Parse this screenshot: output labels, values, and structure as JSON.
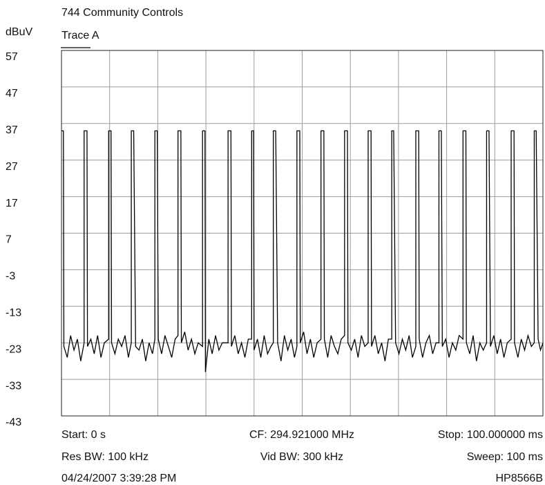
{
  "chart_data": {
    "type": "line",
    "title": "744 Community Controls",
    "ylabel": "dBuV",
    "ylim": [
      -43,
      57
    ],
    "yticks": [
      57,
      47,
      37,
      27,
      17,
      7,
      -3,
      -13,
      -23,
      -33,
      -43
    ],
    "xlim": [
      0,
      100
    ],
    "xticks": [
      0,
      10,
      20,
      30,
      40,
      50,
      60,
      70,
      80,
      90,
      100
    ],
    "grid": true,
    "x": [
      0,
      0.4,
      0.5,
      1.2,
      1.9,
      2.6,
      3.3,
      4.0,
      4.7,
      4.7,
      5.3,
      5.4,
      6.1,
      6.8,
      7.5,
      8.2,
      8.9,
      9.8,
      9.8,
      10.3,
      10.4,
      11.1,
      11.8,
      12.5,
      13.2,
      13.9,
      14.5,
      14.5,
      15.0,
      15.4,
      16.1,
      16.8,
      17.5,
      18.2,
      18.9,
      19.4,
      19.4,
      19.9,
      20.1,
      20.8,
      21.5,
      22.2,
      22.9,
      23.6,
      24.2,
      24.2,
      24.8,
      24.9,
      25.6,
      26.3,
      27.0,
      27.7,
      28.4,
      29.3,
      29.3,
      29.8,
      29.9,
      30.6,
      31.3,
      32.0,
      32.7,
      33.4,
      34.6,
      34.6,
      35.2,
      35.3,
      36.0,
      36.7,
      37.4,
      38.1,
      38.8,
      39.5,
      39.5,
      39.9,
      40.0,
      40.7,
      41.4,
      42.1,
      42.8,
      43.5,
      44.0,
      44.0,
      44.5,
      44.9,
      45.6,
      46.3,
      47.0,
      47.7,
      48.4,
      48.9,
      48.9,
      49.5,
      49.6,
      50.3,
      51.0,
      51.7,
      52.4,
      53.1,
      53.9,
      53.9,
      54.5,
      54.6,
      55.3,
      56.0,
      56.7,
      57.4,
      58.1,
      58.8,
      58.8,
      59.4,
      59.5,
      60.2,
      60.9,
      61.6,
      62.3,
      63.0,
      63.7,
      63.7,
      64.3,
      64.4,
      65.1,
      65.8,
      66.5,
      67.2,
      67.9,
      68.6,
      68.6,
      69.0,
      69.4,
      70.1,
      70.8,
      71.5,
      72.2,
      72.9,
      73.6,
      73.6,
      74.2,
      74.3,
      75.0,
      75.7,
      76.4,
      77.1,
      77.8,
      78.4,
      78.4,
      78.9,
      79.1,
      79.8,
      80.5,
      81.2,
      81.9,
      82.6,
      83.4,
      83.4,
      84.0,
      84.1,
      84.8,
      85.5,
      86.2,
      86.9,
      87.6,
      88.3,
      88.3,
      88.8,
      89.1,
      89.8,
      90.5,
      91.2,
      91.9,
      92.6,
      93.4,
      93.4,
      94.0,
      94.1,
      94.8,
      95.5,
      96.2,
      96.9,
      97.6,
      98.2,
      98.2,
      98.6,
      99.0,
      99.5,
      100
    ],
    "series": [
      {
        "name": "Trace A",
        "color": "#000000",
        "values": [
          35,
          35,
          -24,
          -27,
          -21,
          -25,
          -22,
          -28,
          -23,
          35,
          35,
          -24,
          -22,
          -26,
          -21,
          -27,
          -23,
          -22,
          35,
          35,
          -23,
          -26,
          -22,
          -24,
          -21,
          -27,
          -23,
          35,
          35,
          -24,
          -25,
          -22,
          -28,
          -23,
          -26,
          -22,
          35,
          35,
          -22,
          -26,
          -21,
          -24,
          -27,
          -22,
          -21,
          35,
          35,
          -23,
          -20,
          -25,
          -22,
          -26,
          -23,
          -24,
          35,
          35,
          -31,
          -22,
          -26,
          -21,
          -25,
          -23,
          -23,
          35,
          35,
          -24,
          -21,
          -26,
          -23,
          -27,
          -22,
          -22,
          35,
          35,
          -25,
          -22,
          -27,
          -21,
          -26,
          -24,
          -23,
          35,
          35,
          -23,
          -28,
          -21,
          -25,
          -22,
          -27,
          -24,
          35,
          35,
          -23,
          -20,
          -26,
          -22,
          -27,
          -23,
          -22,
          35,
          35,
          -22,
          -27,
          -21,
          -24,
          -26,
          -22,
          -21,
          35,
          35,
          -23,
          -25,
          -22,
          -27,
          -21,
          -24,
          -23,
          35,
          35,
          -24,
          -21,
          -26,
          -23,
          -28,
          -22,
          -22,
          35,
          35,
          -23,
          -26,
          -22,
          -25,
          -21,
          -27,
          -24,
          35,
          35,
          -22,
          -27,
          -23,
          -21,
          -26,
          -23,
          -23,
          35,
          35,
          -24,
          -22,
          -27,
          -23,
          -25,
          -21,
          -22,
          35,
          35,
          -23,
          -26,
          -21,
          -28,
          -23,
          -25,
          -23,
          35,
          35,
          -24,
          -21,
          -26,
          -22,
          -27,
          -23,
          -22,
          35,
          35,
          -23,
          -27,
          -22,
          -25,
          -21,
          -24,
          -23,
          35,
          35,
          -22,
          -25,
          -23
        ]
      }
    ],
    "footer": [
      [
        "Start: 0 s",
        "CF: 294.921000 MHz",
        "Stop: 100.000000 ms"
      ],
      [
        "Res BW: 100 kHz",
        "Vid BW: 300 kHz",
        "Sweep: 100 ms"
      ],
      [
        "04/24/2007 3:39:28 PM",
        "",
        "HP8566B"
      ]
    ]
  }
}
